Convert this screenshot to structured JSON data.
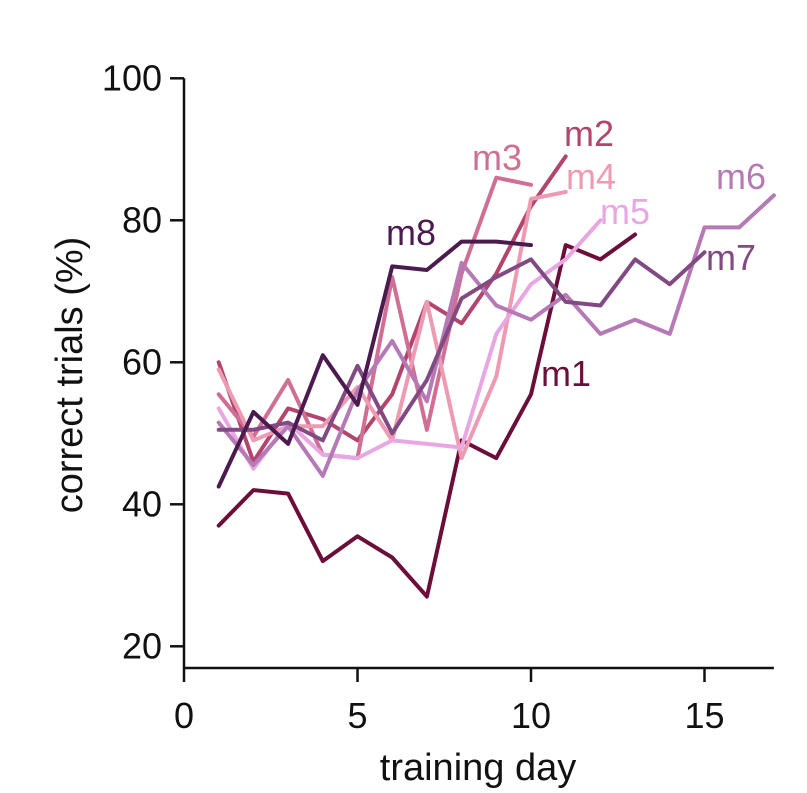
{
  "chart_data": {
    "type": "line",
    "title": "",
    "xlabel": "training day",
    "ylabel": "correct trials (%)",
    "xlim": [
      0,
      17
    ],
    "ylim": [
      17,
      100
    ],
    "xticks": [
      0,
      5,
      10,
      15
    ],
    "yticks": [
      20,
      40,
      60,
      80,
      100
    ],
    "grid": false,
    "legend": "inline labels next to lines",
    "series": [
      {
        "name": "m1",
        "color": "#6b0f3a",
        "x": [
          1,
          2,
          3,
          4,
          5,
          6,
          7,
          8,
          9,
          10,
          11,
          12,
          13
        ],
        "y": [
          37,
          42,
          41.5,
          32,
          35.5,
          32.5,
          27,
          49,
          46.5,
          55.5,
          76.5,
          74.5,
          78
        ]
      },
      {
        "name": "m2",
        "color": "#b2446e",
        "x": [
          1,
          2,
          3,
          4,
          5,
          6,
          7,
          8,
          9,
          10,
          11
        ],
        "y": [
          60,
          46,
          53.5,
          52,
          49,
          55.5,
          68.5,
          65.5,
          72.5,
          82,
          89
        ]
      },
      {
        "name": "m3",
        "color": "#d06f93",
        "x": [
          1,
          2,
          3,
          4,
          5,
          6,
          7,
          8,
          9,
          10
        ],
        "y": [
          55.5,
          49.5,
          57.5,
          47,
          46.5,
          72,
          50.5,
          72.5,
          86,
          85
        ]
      },
      {
        "name": "m4",
        "color": "#ee9ab2",
        "x": [
          1,
          2,
          3,
          4,
          5,
          6,
          7,
          8,
          9,
          10,
          11
        ],
        "y": [
          59,
          49,
          51,
          51,
          56.5,
          49,
          68.5,
          46.5,
          58,
          83,
          84
        ]
      },
      {
        "name": "m5",
        "color": "#e8a6e2",
        "x": [
          1,
          2,
          3,
          4,
          5,
          6,
          7,
          8,
          9,
          10,
          11,
          12
        ],
        "y": [
          53.5,
          45,
          51.5,
          47,
          46.5,
          49,
          48.5,
          48,
          64,
          71,
          74.5,
          80
        ]
      },
      {
        "name": "m6",
        "color": "#b57ab5",
        "x": [
          1,
          2,
          3,
          4,
          5,
          6,
          7,
          8,
          9,
          10,
          11,
          12,
          13,
          14,
          15,
          16,
          17
        ],
        "y": [
          51.5,
          45.5,
          51,
          44,
          56,
          63,
          54.5,
          74,
          68,
          66,
          69.5,
          64,
          66,
          64,
          79,
          79,
          83.5
        ]
      },
      {
        "name": "m7",
        "color": "#824a82",
        "x": [
          1,
          2,
          3,
          4,
          5,
          6,
          7,
          8,
          9,
          10,
          11,
          12,
          13,
          14,
          15
        ],
        "y": [
          50.5,
          50.5,
          51.5,
          49,
          59.5,
          50,
          57.5,
          69,
          72,
          74.5,
          68.5,
          68,
          74.5,
          71,
          75.5
        ]
      },
      {
        "name": "m8",
        "color": "#4b1a4f",
        "x": [
          1,
          2,
          3,
          4,
          5,
          6,
          7,
          8,
          9,
          10
        ],
        "y": [
          42.5,
          53,
          48.5,
          61,
          54,
          73.5,
          73,
          77,
          77,
          76.5
        ]
      }
    ],
    "annotations": [
      "m1",
      "m2",
      "m3",
      "m4",
      "m5",
      "m6",
      "m7",
      "m8"
    ]
  }
}
